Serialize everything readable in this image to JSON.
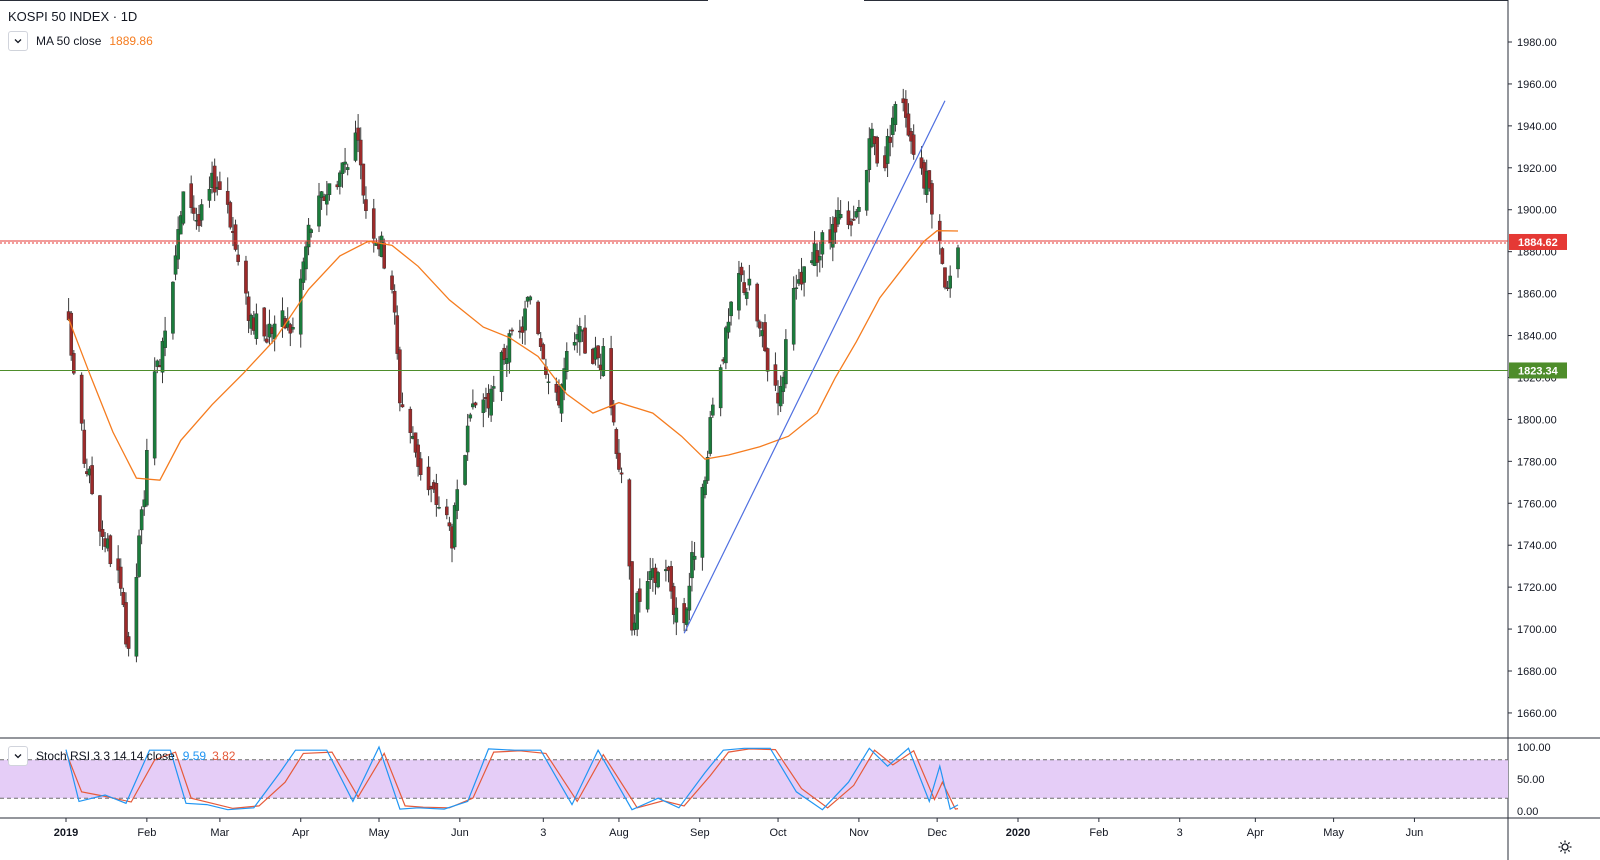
{
  "header": {
    "title": "KOSPI 50 INDEX · 1D",
    "ma_label": "MA 50 close",
    "ma_value": "1889.86"
  },
  "oscillator": {
    "label": "Stoch RSI 3 3 14 14 close",
    "k_value": "9.59",
    "d_value": "3.82",
    "levels": [
      0,
      20,
      80,
      100
    ],
    "tick_labels": [
      "100.00",
      "50.00",
      "0.00"
    ]
  },
  "colors": {
    "up": "#26a69a",
    "up_body": "#1b7c3c",
    "down": "#9c2a2a",
    "ma": "#f57c1f",
    "trendline": "#4f6fe0",
    "resistance": "#e53935",
    "support": "#4e8d2b",
    "k_line": "#2196f3",
    "d_line": "#e65a3a",
    "band": "#e5cdf7"
  },
  "price_labels": {
    "resistance": "1884.62",
    "support": "1823.34"
  },
  "chart_data": {
    "type": "candlestick",
    "title": "KOSPI 50 INDEX · 1D",
    "ylim": [
      1650,
      1990
    ],
    "y_ticks": [
      "1980.00",
      "1960.00",
      "1940.00",
      "1920.00",
      "1900.00",
      "1880.00",
      "1860.00",
      "1840.00",
      "1820.00",
      "1800.00",
      "1780.00",
      "1760.00",
      "1740.00",
      "1720.00",
      "1700.00",
      "1680.00",
      "1660.00"
    ],
    "x_ticks": [
      "2019",
      "Feb",
      "Mar",
      "Apr",
      "May",
      "Jun",
      "3",
      "Aug",
      "Sep",
      "Oct",
      "Nov",
      "Dec",
      "2020",
      "Feb",
      "3",
      "Apr",
      "May",
      "Jun"
    ],
    "horizontal_lines": [
      {
        "name": "resistance",
        "value": 1884.62
      },
      {
        "name": "support",
        "value": 1823.34
      }
    ],
    "trendline": {
      "x": [
        "2019-08-26",
        "2019-12-04"
      ],
      "y": [
        1698,
        1952
      ]
    },
    "close_anchors": [
      [
        "2019-01-02",
        1842
      ],
      [
        "2019-01-08",
        1782
      ],
      [
        "2019-01-15",
        1746
      ],
      [
        "2019-01-21",
        1725
      ],
      [
        "2019-01-25",
        1685
      ],
      [
        "2019-01-29",
        1740
      ],
      [
        "2019-02-03",
        1808
      ],
      [
        "2019-02-07",
        1840
      ],
      [
        "2019-02-12",
        1880
      ],
      [
        "2019-02-16",
        1912
      ],
      [
        "2019-02-21",
        1893
      ],
      [
        "2019-02-27",
        1915
      ],
      [
        "2019-03-04",
        1905
      ],
      [
        "2019-03-10",
        1858
      ],
      [
        "2019-03-17",
        1838
      ],
      [
        "2019-03-23",
        1848
      ],
      [
        "2019-03-29",
        1843
      ],
      [
        "2019-04-04",
        1890
      ],
      [
        "2019-04-11",
        1910
      ],
      [
        "2019-04-16",
        1918
      ],
      [
        "2019-04-22",
        1935
      ],
      [
        "2019-04-26",
        1902
      ],
      [
        "2019-05-02",
        1882
      ],
      [
        "2019-05-06",
        1865
      ],
      [
        "2019-05-09",
        1812
      ],
      [
        "2019-05-14",
        1790
      ],
      [
        "2019-05-19",
        1768
      ],
      [
        "2019-05-24",
        1760
      ],
      [
        "2019-05-29",
        1745
      ],
      [
        "2019-06-03",
        1785
      ],
      [
        "2019-06-08",
        1812
      ],
      [
        "2019-06-13",
        1808
      ],
      [
        "2019-06-18",
        1832
      ],
      [
        "2019-06-24",
        1840
      ],
      [
        "2019-06-28",
        1860
      ],
      [
        "2019-07-03",
        1835
      ],
      [
        "2019-07-07",
        1802
      ],
      [
        "2019-07-12",
        1828
      ],
      [
        "2019-07-17",
        1838
      ],
      [
        "2019-07-23",
        1830
      ],
      [
        "2019-07-27",
        1828
      ],
      [
        "2019-08-01",
        1780
      ],
      [
        "2019-08-04",
        1745
      ],
      [
        "2019-08-06",
        1706
      ],
      [
        "2019-08-10",
        1718
      ],
      [
        "2019-08-15",
        1725
      ],
      [
        "2019-08-19",
        1732
      ],
      [
        "2019-08-22",
        1712
      ],
      [
        "2019-08-26",
        1705
      ],
      [
        "2019-08-30",
        1740
      ],
      [
        "2019-09-03",
        1768
      ],
      [
        "2019-09-07",
        1820
      ],
      [
        "2019-09-11",
        1838
      ],
      [
        "2019-09-16",
        1868
      ],
      [
        "2019-09-20",
        1862
      ],
      [
        "2019-09-24",
        1842
      ],
      [
        "2019-09-28",
        1822
      ],
      [
        "2019-10-02",
        1812
      ],
      [
        "2019-10-05",
        1850
      ],
      [
        "2019-10-10",
        1865
      ],
      [
        "2019-10-15",
        1878
      ],
      [
        "2019-10-20",
        1885
      ],
      [
        "2019-10-25",
        1895
      ],
      [
        "2019-10-29",
        1888
      ],
      [
        "2019-11-02",
        1905
      ],
      [
        "2019-11-06",
        1935
      ],
      [
        "2019-11-10",
        1918
      ],
      [
        "2019-11-14",
        1945
      ],
      [
        "2019-11-18",
        1955
      ],
      [
        "2019-11-21",
        1935
      ],
      [
        "2019-11-25",
        1920
      ],
      [
        "2019-11-28",
        1908
      ],
      [
        "2019-12-02",
        1888
      ],
      [
        "2019-12-05",
        1858
      ],
      [
        "2019-12-09",
        1878
      ]
    ],
    "ma50_anchors": [
      [
        "2019-01-02",
        1848
      ],
      [
        "2019-01-10",
        1822
      ],
      [
        "2019-01-19",
        1794
      ],
      [
        "2019-01-28",
        1772
      ],
      [
        "2019-02-06",
        1771
      ],
      [
        "2019-02-14",
        1790
      ],
      [
        "2019-02-26",
        1807
      ],
      [
        "2019-03-10",
        1822
      ],
      [
        "2019-03-22",
        1838
      ],
      [
        "2019-04-04",
        1862
      ],
      [
        "2019-04-16",
        1878
      ],
      [
        "2019-04-27",
        1885
      ],
      [
        "2019-05-06",
        1883
      ],
      [
        "2019-05-16",
        1873
      ],
      [
        "2019-05-28",
        1857
      ],
      [
        "2019-06-10",
        1844
      ],
      [
        "2019-06-20",
        1839
      ],
      [
        "2019-07-01",
        1830
      ],
      [
        "2019-07-12",
        1812
      ],
      [
        "2019-07-22",
        1803
      ],
      [
        "2019-08-01",
        1808
      ],
      [
        "2019-08-14",
        1803
      ],
      [
        "2019-08-25",
        1792
      ],
      [
        "2019-09-03",
        1781
      ],
      [
        "2019-09-12",
        1783
      ],
      [
        "2019-09-24",
        1787
      ],
      [
        "2019-10-05",
        1792
      ],
      [
        "2019-10-16",
        1803
      ],
      [
        "2019-10-23",
        1820
      ],
      [
        "2019-10-31",
        1837
      ],
      [
        "2019-11-09",
        1858
      ],
      [
        "2019-11-19",
        1874
      ],
      [
        "2019-11-26",
        1885
      ],
      [
        "2019-12-01",
        1890
      ],
      [
        "2019-12-09",
        1889.86
      ]
    ],
    "stoch_k_anchors": [
      [
        "2019-01-01",
        96
      ],
      [
        "2019-01-06",
        15
      ],
      [
        "2019-01-16",
        25
      ],
      [
        "2019-01-24",
        12
      ],
      [
        "2019-02-02",
        95
      ],
      [
        "2019-02-10",
        95
      ],
      [
        "2019-02-16",
        12
      ],
      [
        "2019-02-24",
        10
      ],
      [
        "2019-03-04",
        2
      ],
      [
        "2019-03-14",
        5
      ],
      [
        "2019-03-24",
        60
      ],
      [
        "2019-03-30",
        95
      ],
      [
        "2019-04-11",
        95
      ],
      [
        "2019-04-21",
        15
      ],
      [
        "2019-05-01",
        100
      ],
      [
        "2019-05-09",
        3
      ],
      [
        "2019-05-16",
        5
      ],
      [
        "2019-05-26",
        3
      ],
      [
        "2019-06-04",
        15
      ],
      [
        "2019-06-12",
        97
      ],
      [
        "2019-06-22",
        95
      ],
      [
        "2019-07-02",
        95
      ],
      [
        "2019-07-14",
        10
      ],
      [
        "2019-07-24",
        95
      ],
      [
        "2019-08-06",
        2
      ],
      [
        "2019-08-16",
        20
      ],
      [
        "2019-08-24",
        5
      ],
      [
        "2019-09-03",
        60
      ],
      [
        "2019-09-10",
        95
      ],
      [
        "2019-09-18",
        98
      ],
      [
        "2019-09-28",
        98
      ],
      [
        "2019-10-08",
        30
      ],
      [
        "2019-10-18",
        2
      ],
      [
        "2019-10-28",
        45
      ],
      [
        "2019-11-05",
        98
      ],
      [
        "2019-11-12",
        70
      ],
      [
        "2019-11-20",
        98
      ],
      [
        "2019-11-28",
        15
      ],
      [
        "2019-12-02",
        70
      ],
      [
        "2019-12-06",
        3
      ],
      [
        "2019-12-09",
        9.59
      ]
    ],
    "stoch_d_anchors": [
      [
        "2019-01-01",
        92
      ],
      [
        "2019-01-07",
        30
      ],
      [
        "2019-01-17",
        22
      ],
      [
        "2019-01-26",
        14
      ],
      [
        "2019-02-04",
        80
      ],
      [
        "2019-02-12",
        92
      ],
      [
        "2019-02-18",
        20
      ],
      [
        "2019-02-26",
        12
      ],
      [
        "2019-03-06",
        4
      ],
      [
        "2019-03-16",
        8
      ],
      [
        "2019-03-26",
        45
      ],
      [
        "2019-04-02",
        90
      ],
      [
        "2019-04-13",
        92
      ],
      [
        "2019-04-23",
        22
      ],
      [
        "2019-05-03",
        90
      ],
      [
        "2019-05-11",
        8
      ],
      [
        "2019-05-18",
        6
      ],
      [
        "2019-05-28",
        5
      ],
      [
        "2019-06-06",
        20
      ],
      [
        "2019-06-14",
        92
      ],
      [
        "2019-06-24",
        94
      ],
      [
        "2019-07-04",
        90
      ],
      [
        "2019-07-16",
        15
      ],
      [
        "2019-07-26",
        88
      ],
      [
        "2019-08-08",
        5
      ],
      [
        "2019-08-18",
        16
      ],
      [
        "2019-08-26",
        8
      ],
      [
        "2019-09-05",
        55
      ],
      [
        "2019-09-12",
        92
      ],
      [
        "2019-09-20",
        97
      ],
      [
        "2019-09-30",
        96
      ],
      [
        "2019-10-10",
        35
      ],
      [
        "2019-10-20",
        5
      ],
      [
        "2019-10-30",
        40
      ],
      [
        "2019-11-07",
        95
      ],
      [
        "2019-11-14",
        72
      ],
      [
        "2019-11-22",
        94
      ],
      [
        "2019-11-30",
        18
      ],
      [
        "2019-12-03",
        45
      ],
      [
        "2019-12-08",
        3
      ],
      [
        "2019-12-09",
        3.82
      ]
    ]
  }
}
